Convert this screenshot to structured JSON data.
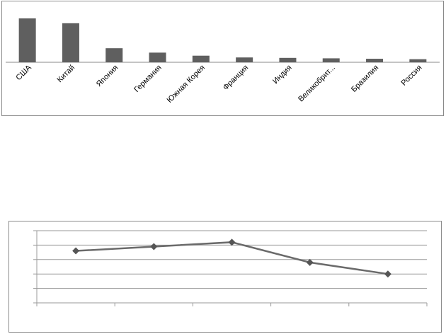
{
  "chart_data": [
    {
      "type": "bar",
      "categories": [
        "США",
        "Китай",
        "Япония",
        "Германия",
        "Южная Корея",
        "Франция",
        "Индия",
        "Великобрит...",
        "Бразилия",
        "Россия"
      ],
      "values": [
        100,
        89,
        32,
        22,
        15,
        11,
        10,
        9,
        8,
        7
      ],
      "ylim": [
        0,
        100
      ],
      "grid": false,
      "bar_color": "#5f5f5f"
    },
    {
      "type": "line",
      "x": [
        1,
        2,
        3,
        4,
        5
      ],
      "values": [
        3.6,
        3.9,
        4.2,
        2.8,
        2.0
      ],
      "ylim": [
        0,
        5
      ],
      "y_ticks": [
        0,
        1,
        2,
        3,
        4,
        5
      ],
      "grid": true,
      "line_color": "#6a6a6a",
      "marker": "diamond"
    }
  ]
}
